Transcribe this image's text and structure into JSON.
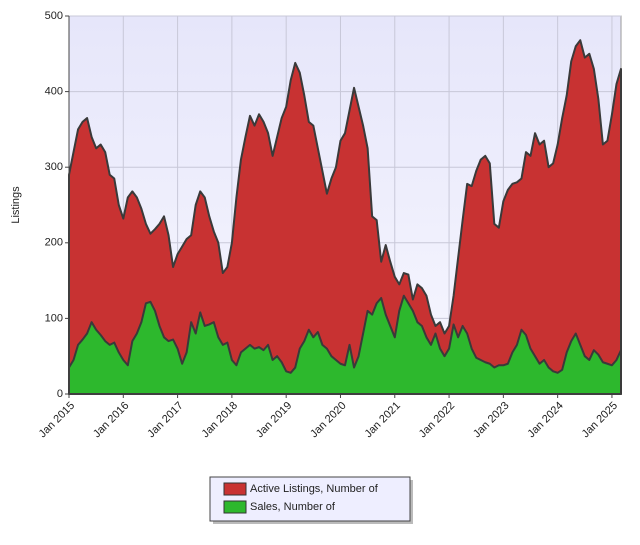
{
  "chart_data": {
    "type": "area",
    "y_label": "Listings",
    "categories": [
      "Jan 2015",
      null,
      null,
      null,
      null,
      null,
      null,
      null,
      null,
      null,
      null,
      null,
      "Jan 2016",
      null,
      null,
      null,
      null,
      null,
      null,
      null,
      null,
      null,
      null,
      null,
      "Jan 2017",
      null,
      null,
      null,
      null,
      null,
      null,
      null,
      null,
      null,
      null,
      null,
      "Jan 2018",
      null,
      null,
      null,
      null,
      null,
      null,
      null,
      null,
      null,
      null,
      null,
      "Jan 2019",
      null,
      null,
      null,
      null,
      null,
      null,
      null,
      null,
      null,
      null,
      null,
      "Jan 2020",
      null,
      null,
      null,
      null,
      null,
      null,
      null,
      null,
      null,
      null,
      null,
      "Jan 2021",
      null,
      null,
      null,
      null,
      null,
      null,
      null,
      null,
      null,
      null,
      null,
      "Jan 2022",
      null,
      null,
      null,
      null,
      null,
      null,
      null,
      null,
      null,
      null,
      null,
      "Jan 2023",
      null,
      null,
      null,
      null,
      null,
      null,
      null,
      null,
      null,
      null,
      null,
      "Jan 2024",
      null,
      null,
      null,
      null,
      null,
      null,
      null,
      null,
      null,
      null,
      null,
      "Jan 2025",
      null,
      null
    ],
    "series": [
      {
        "name": "Active Listings, Number of",
        "color": "#c83232",
        "values": [
          290,
          320,
          350,
          360,
          365,
          340,
          325,
          330,
          320,
          290,
          285,
          250,
          232,
          260,
          268,
          260,
          245,
          225,
          212,
          218,
          225,
          235,
          210,
          168,
          185,
          195,
          205,
          210,
          250,
          268,
          260,
          235,
          215,
          200,
          160,
          168,
          200,
          260,
          310,
          340,
          368,
          355,
          370,
          360,
          345,
          315,
          340,
          365,
          380,
          415,
          438,
          425,
          395,
          360,
          355,
          325,
          295,
          265,
          285,
          300,
          335,
          345,
          375,
          405,
          380,
          355,
          325,
          235,
          230,
          175,
          197,
          175,
          155,
          145,
          160,
          158,
          125,
          145,
          140,
          130,
          105,
          90,
          95,
          80,
          90,
          130,
          180,
          230,
          278,
          275,
          295,
          310,
          315,
          305,
          225,
          220,
          255,
          270,
          278,
          280,
          285,
          320,
          315,
          345,
          330,
          335,
          300,
          305,
          330,
          365,
          395,
          440,
          460,
          468,
          445,
          450,
          430,
          390,
          330,
          335,
          370,
          410,
          430
        ]
      },
      {
        "name": "Sales, Number of",
        "color": "#2db82d",
        "values": [
          35,
          45,
          65,
          72,
          80,
          95,
          85,
          78,
          70,
          65,
          68,
          55,
          45,
          38,
          70,
          80,
          95,
          120,
          122,
          110,
          90,
          75,
          70,
          72,
          60,
          40,
          55,
          95,
          80,
          108,
          90,
          92,
          95,
          75,
          65,
          68,
          45,
          38,
          55,
          60,
          65,
          60,
          62,
          58,
          65,
          45,
          50,
          42,
          30,
          28,
          35,
          60,
          70,
          85,
          75,
          82,
          65,
          60,
          50,
          45,
          40,
          38,
          65,
          35,
          50,
          80,
          110,
          105,
          120,
          127,
          105,
          90,
          75,
          110,
          130,
          120,
          110,
          95,
          90,
          75,
          65,
          80,
          60,
          50,
          60,
          92,
          75,
          90,
          80,
          60,
          48,
          45,
          42,
          40,
          35,
          38,
          38,
          40,
          55,
          65,
          85,
          78,
          60,
          50,
          40,
          45,
          35,
          30,
          28,
          32,
          55,
          70,
          80,
          65,
          50,
          45,
          58,
          52,
          42,
          40,
          38,
          45,
          58
        ]
      }
    ],
    "ylim": [
      0,
      500
    ],
    "yticks": [
      0,
      100,
      200,
      300,
      400,
      500
    ],
    "grid": true,
    "legend": "bottom"
  }
}
